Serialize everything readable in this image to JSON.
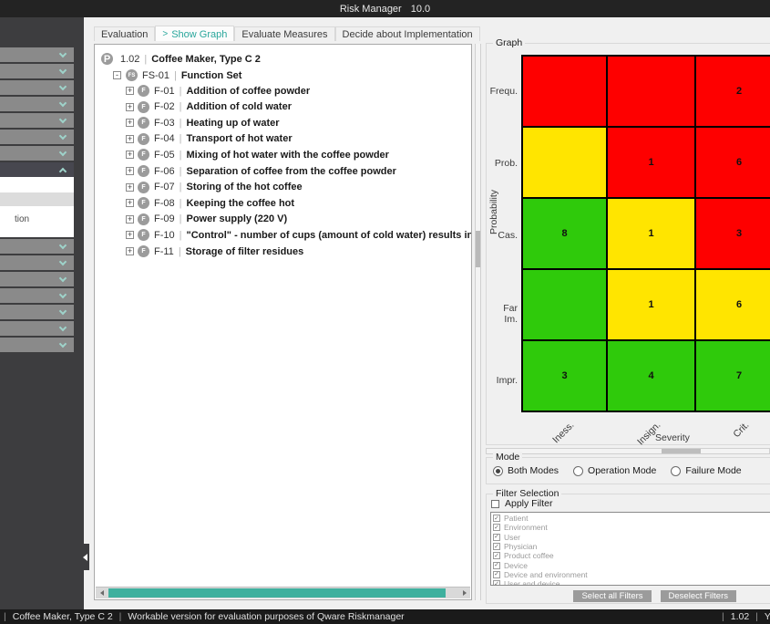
{
  "window": {
    "title": "Risk Manager",
    "version": "10.0"
  },
  "tabs": {
    "active_prefix": ">",
    "items": [
      {
        "label": "Evaluation",
        "active": false
      },
      {
        "label": "Show Graph",
        "active": true
      },
      {
        "label": "Evaluate Measures",
        "active": false
      },
      {
        "label": "Decide about Implementation",
        "active": false
      }
    ]
  },
  "sidebar": {
    "collapsed_above": 7,
    "collapsed_below": 7,
    "expanded_panel": {
      "partial_label": "tion"
    }
  },
  "tree": {
    "sep": "|",
    "expanders": {
      "collapsed": "+",
      "expanded": "-"
    },
    "project": {
      "badge": "P",
      "id": "1.02",
      "label": "Coffee Maker, Type C 2"
    },
    "function_set": {
      "badge": "FS",
      "id": "FS-01",
      "label": "Function Set"
    },
    "functions": [
      {
        "badge": "F",
        "id": "F-01",
        "label": "Addition of coffee powder"
      },
      {
        "badge": "F",
        "id": "F-02",
        "label": "Addition of cold water"
      },
      {
        "badge": "F",
        "id": "F-03",
        "label": "Heating up of water"
      },
      {
        "badge": "F",
        "id": "F-04",
        "label": "Transport of hot water"
      },
      {
        "badge": "F",
        "id": "F-05",
        "label": "Mixing of hot water with the coffee powder"
      },
      {
        "badge": "F",
        "id": "F-06",
        "label": "Separation of coffee from the coffee powder"
      },
      {
        "badge": "F",
        "id": "F-07",
        "label": "Storing of the hot coffee"
      },
      {
        "badge": "F",
        "id": "F-08",
        "label": "Keeping the coffee hot"
      },
      {
        "badge": "F",
        "id": "F-09",
        "label": "Power supply (220 V)"
      },
      {
        "badge": "F",
        "id": "F-10",
        "label": "\"Control\" - number of cups (amount of cold water) results in the desired number of cups c"
      },
      {
        "badge": "F",
        "id": "F-11",
        "label": "Storage of filter residues"
      }
    ]
  },
  "graph": {
    "group_label": "Graph"
  },
  "chart_data": {
    "type": "heatmap",
    "title": "Graph",
    "x_categories": [
      "Iness.",
      "Insign.",
      "Crit."
    ],
    "y_categories": [
      "Frequ.",
      "Prob.",
      "Cas.",
      "Far Im.",
      "Impr."
    ],
    "xlabel": "Severity",
    "ylabel": "Probability",
    "cell_colors": {
      "red": "#fe0000",
      "yellow": "#ffe500",
      "green": "#2fca0b"
    },
    "cells": [
      [
        {
          "color": "red",
          "value": ""
        },
        {
          "color": "red",
          "value": ""
        },
        {
          "color": "red",
          "value": "2"
        }
      ],
      [
        {
          "color": "yellow",
          "value": ""
        },
        {
          "color": "red",
          "value": "1"
        },
        {
          "color": "red",
          "value": "6"
        }
      ],
      [
        {
          "color": "green",
          "value": "8"
        },
        {
          "color": "yellow",
          "value": "1"
        },
        {
          "color": "red",
          "value": "3"
        }
      ],
      [
        {
          "color": "green",
          "value": ""
        },
        {
          "color": "yellow",
          "value": "1"
        },
        {
          "color": "yellow",
          "value": "6"
        }
      ],
      [
        {
          "color": "green",
          "value": "3"
        },
        {
          "color": "green",
          "value": "4"
        },
        {
          "color": "green",
          "value": "7"
        }
      ]
    ]
  },
  "mode": {
    "group_label": "Mode",
    "options": [
      {
        "label": "Both Modes",
        "selected": true
      },
      {
        "label": "Operation Mode",
        "selected": false
      },
      {
        "label": "Failure Mode",
        "selected": false
      }
    ]
  },
  "filters": {
    "group_label": "Filter Selection",
    "apply_label": "Apply Filter",
    "apply_checked": false,
    "check_glyph": "✓",
    "items": [
      {
        "label": "Patient",
        "checked": true
      },
      {
        "label": "Environment",
        "checked": true
      },
      {
        "label": "User",
        "checked": true
      },
      {
        "label": "Physician",
        "checked": true
      },
      {
        "label": "Product coffee",
        "checked": true
      },
      {
        "label": "Device",
        "checked": true
      },
      {
        "label": "Device and environment",
        "checked": true
      },
      {
        "label": "User and device",
        "checked": true
      }
    ],
    "buttons": [
      {
        "label": "Select all Filters"
      },
      {
        "label": "Deselect Filters"
      }
    ]
  },
  "statusbar": {
    "separator": "|",
    "left": [
      "Coffee Maker, Type C 2",
      "Workable version for evaluation purposes of Qware Riskmanager"
    ],
    "right": [
      "1.02",
      "You"
    ]
  }
}
